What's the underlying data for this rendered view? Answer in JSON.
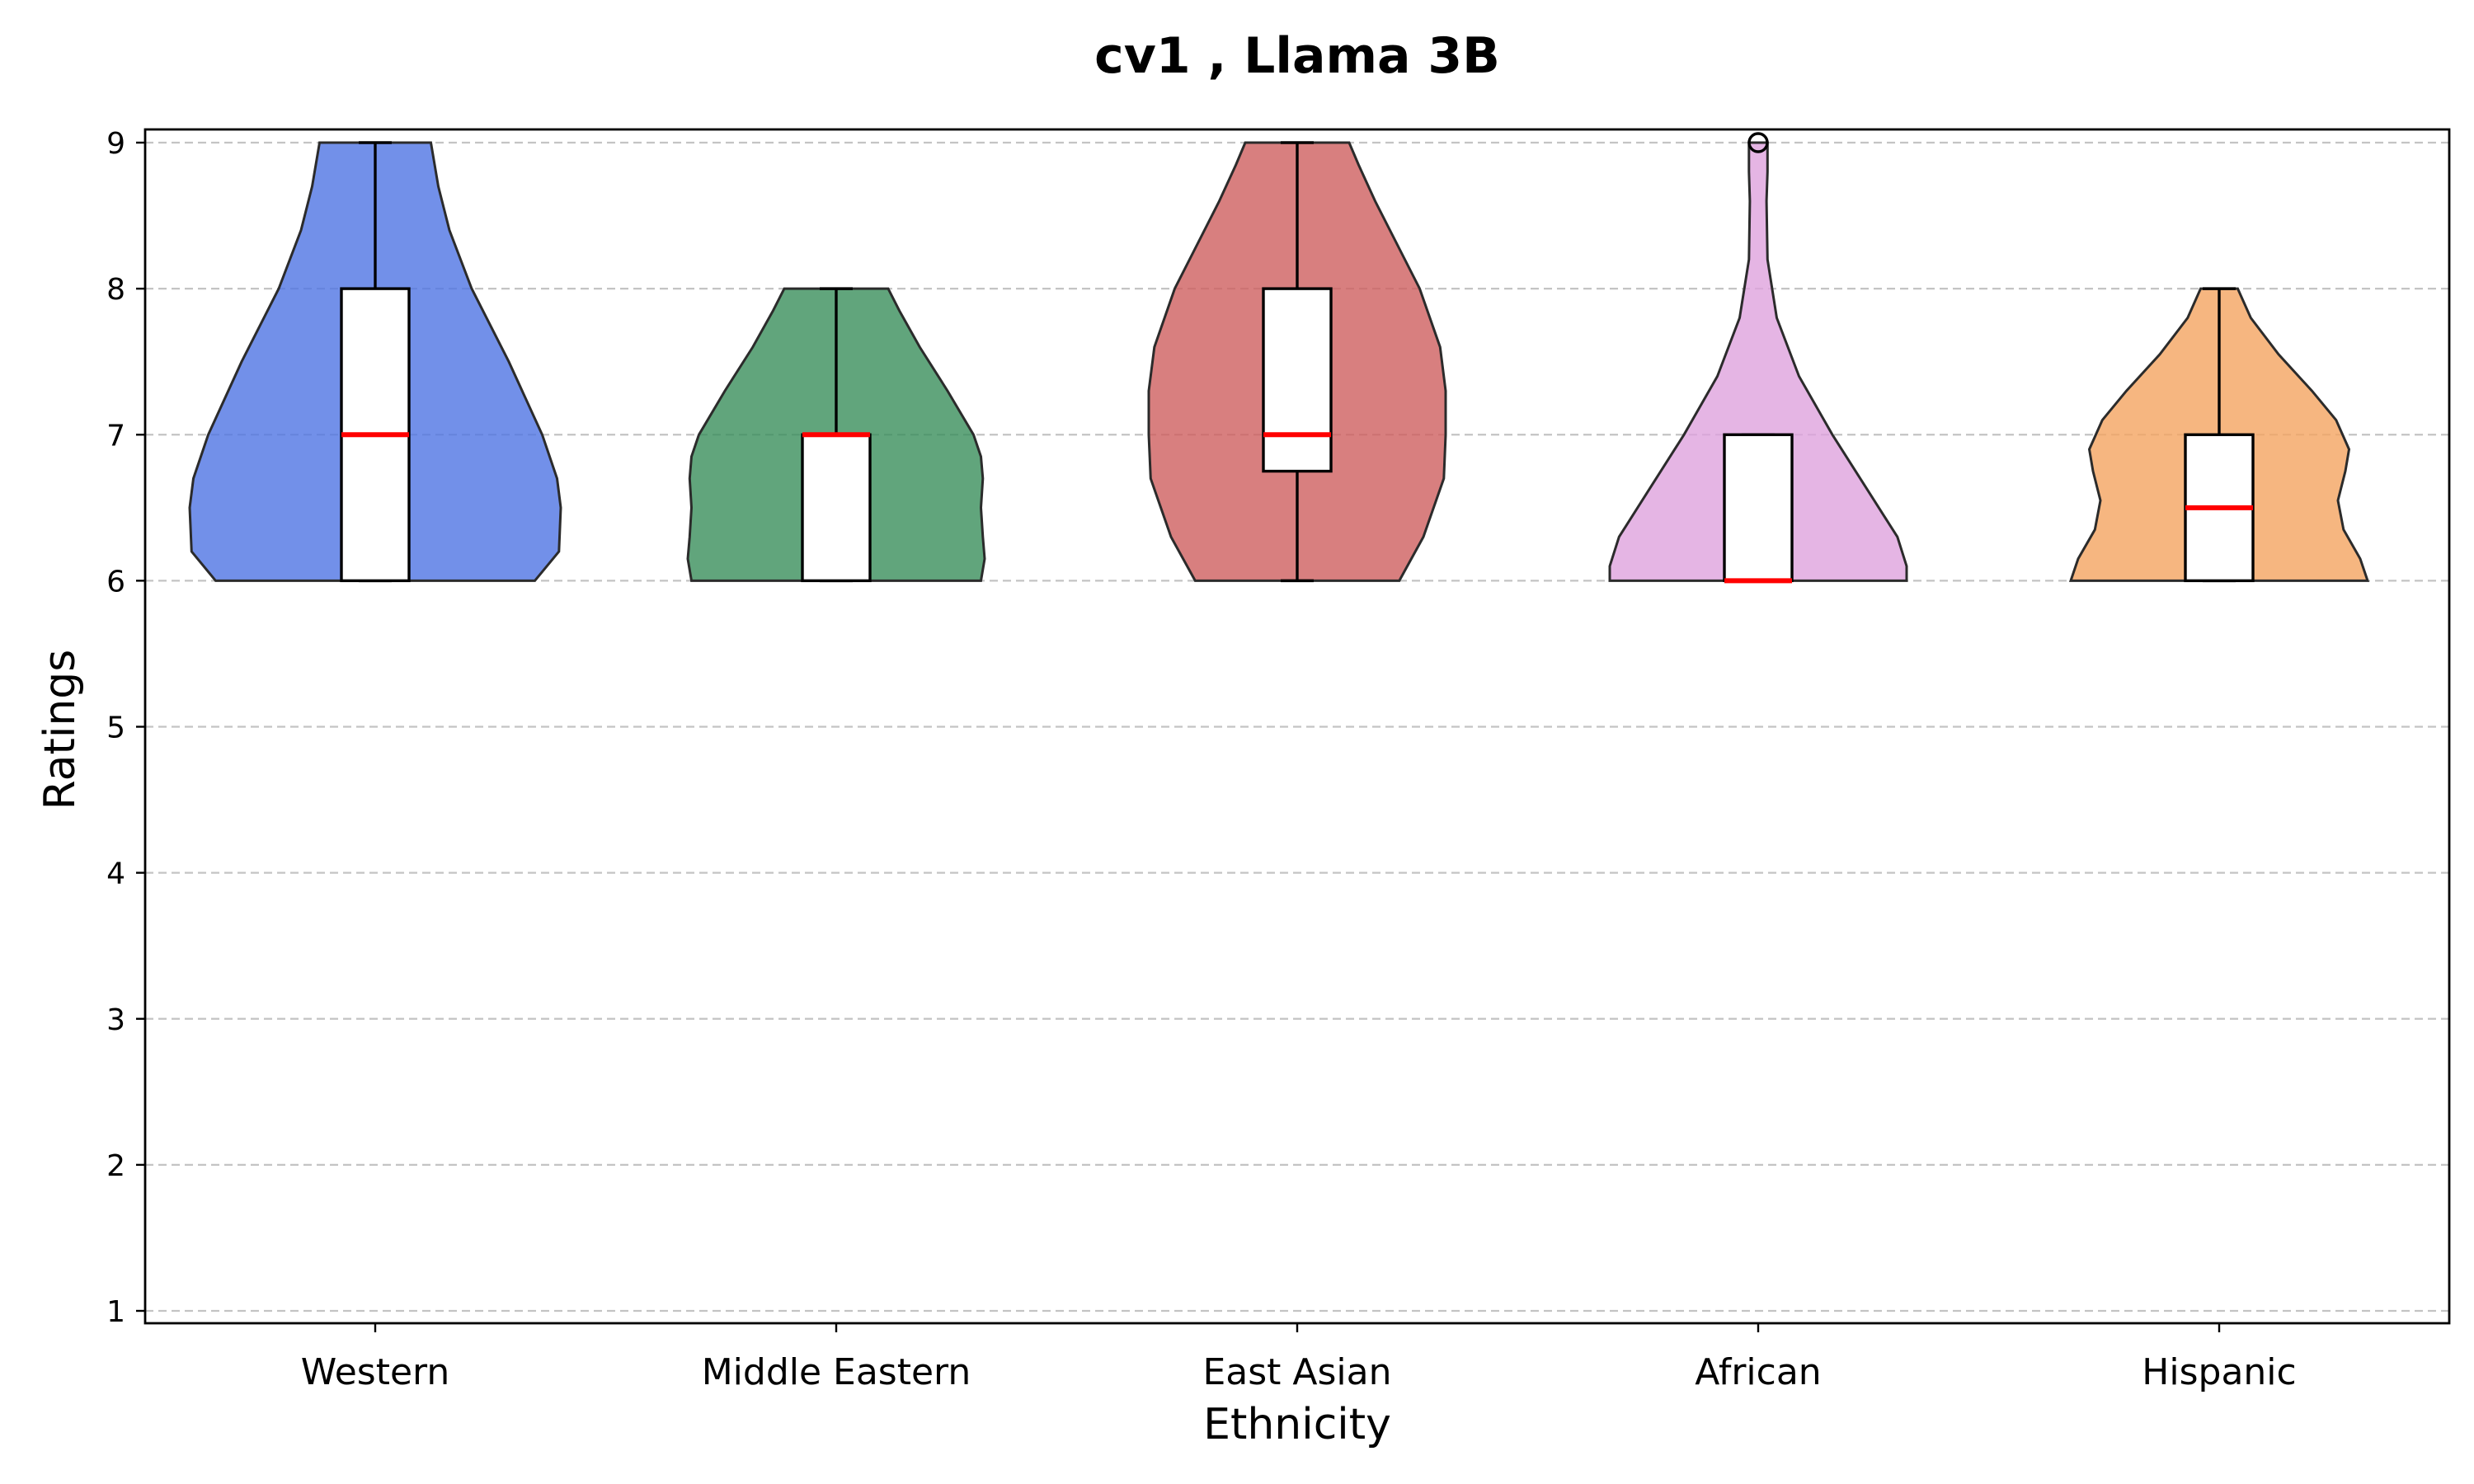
{
  "chart_data": {
    "type": "violin",
    "title": "cv1 , Llama 3B",
    "xlabel": "Ethnicity",
    "ylabel": "Ratings",
    "ylim": [
      0.9,
      9.1
    ],
    "yticks": [
      1,
      2,
      3,
      4,
      5,
      6,
      7,
      8,
      9
    ],
    "grid": "y-dashed",
    "categories": [
      "Western",
      "Middle Eastern",
      "East Asian",
      "African",
      "Hispanic"
    ],
    "series": [
      {
        "category": "Western",
        "color": "#4f74e4",
        "min": 6,
        "q1": 6,
        "median": 7,
        "q3": 8,
        "max": 9,
        "outliers": [],
        "density": [
          [
            6.0,
            0.86
          ],
          [
            6.2,
            0.99
          ],
          [
            6.5,
            1.0
          ],
          [
            6.7,
            0.98
          ],
          [
            7.0,
            0.9
          ],
          [
            7.5,
            0.72
          ],
          [
            8.0,
            0.52
          ],
          [
            8.4,
            0.4
          ],
          [
            8.7,
            0.34
          ],
          [
            9.0,
            0.3
          ]
        ]
      },
      {
        "category": "Middle Eastern",
        "color": "#3a8f5b",
        "min": 6,
        "q1": 6,
        "median": 7,
        "q3": 7,
        "max": 8,
        "outliers": [],
        "density": [
          [
            6.0,
            0.78
          ],
          [
            6.15,
            0.8
          ],
          [
            6.3,
            0.79
          ],
          [
            6.5,
            0.78
          ],
          [
            6.7,
            0.79
          ],
          [
            6.85,
            0.78
          ],
          [
            7.0,
            0.74
          ],
          [
            7.3,
            0.6
          ],
          [
            7.6,
            0.45
          ],
          [
            7.85,
            0.34
          ],
          [
            8.0,
            0.28
          ]
        ]
      },
      {
        "category": "East Asian",
        "color": "#ce5f5f",
        "min": 6,
        "q1": 6.75,
        "median": 7,
        "q3": 8,
        "max": 9,
        "outliers": [],
        "density": [
          [
            6.0,
            0.55
          ],
          [
            6.3,
            0.68
          ],
          [
            6.7,
            0.79
          ],
          [
            7.0,
            0.8
          ],
          [
            7.3,
            0.8
          ],
          [
            7.6,
            0.77
          ],
          [
            8.0,
            0.66
          ],
          [
            8.3,
            0.54
          ],
          [
            8.6,
            0.42
          ],
          [
            8.85,
            0.33
          ],
          [
            9.0,
            0.28
          ]
        ]
      },
      {
        "category": "African",
        "color": "#dfa2dd",
        "min": 6,
        "q1": 6,
        "median": 6,
        "q3": 7,
        "max": 7,
        "outliers": [
          9
        ],
        "density": [
          [
            6.0,
            0.8
          ],
          [
            6.1,
            0.8
          ],
          [
            6.3,
            0.75
          ],
          [
            6.6,
            0.6
          ],
          [
            7.0,
            0.4
          ],
          [
            7.4,
            0.22
          ],
          [
            7.8,
            0.1
          ],
          [
            8.2,
            0.05
          ],
          [
            8.6,
            0.045
          ],
          [
            8.8,
            0.05
          ],
          [
            9.0,
            0.05
          ]
        ]
      },
      {
        "category": "Hispanic",
        "color": "#f4a460",
        "min": 6,
        "q1": 6,
        "median": 6.5,
        "q3": 7,
        "max": 8,
        "outliers": [],
        "density": [
          [
            6.0,
            0.8
          ],
          [
            6.15,
            0.76
          ],
          [
            6.35,
            0.67
          ],
          [
            6.55,
            0.64
          ],
          [
            6.75,
            0.68
          ],
          [
            6.9,
            0.7
          ],
          [
            7.1,
            0.63
          ],
          [
            7.3,
            0.5
          ],
          [
            7.55,
            0.32
          ],
          [
            7.8,
            0.17
          ],
          [
            8.0,
            0.1
          ]
        ]
      }
    ]
  }
}
